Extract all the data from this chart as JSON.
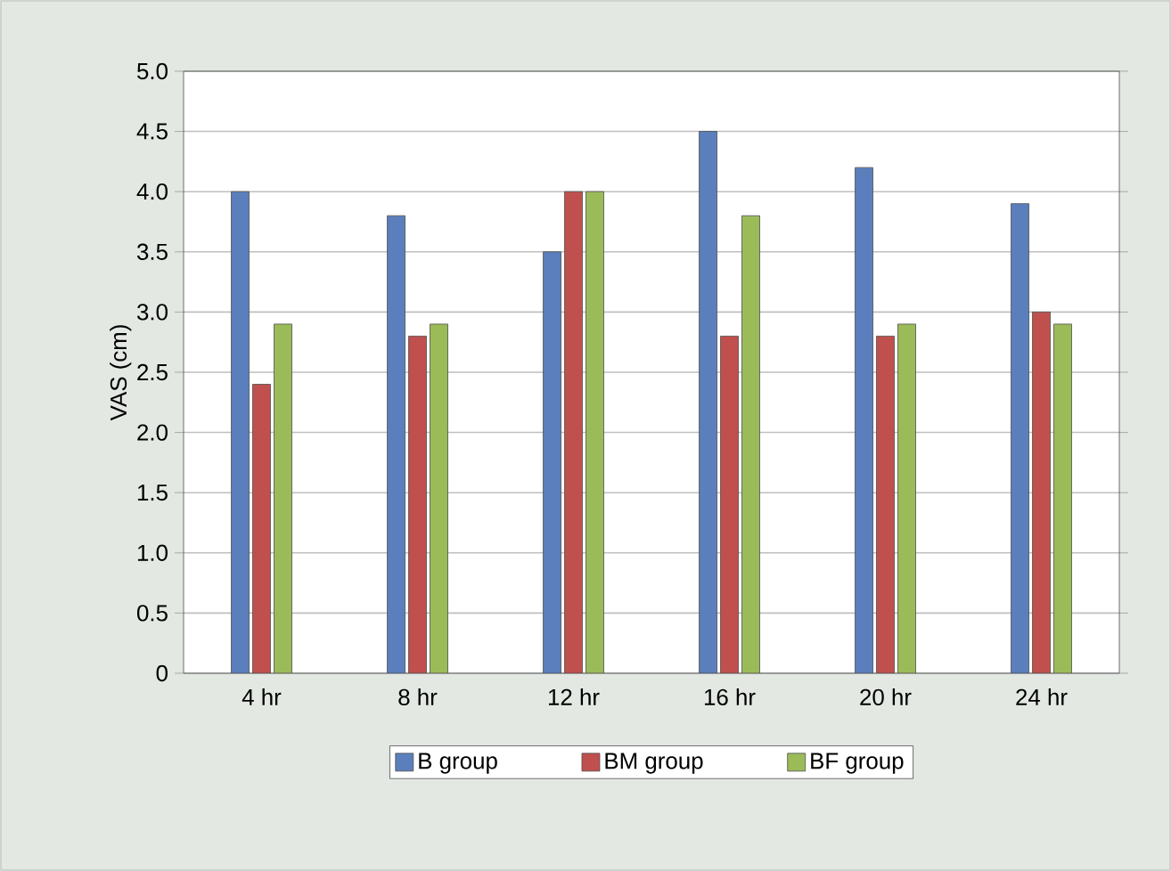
{
  "chart_data": {
    "type": "bar",
    "ylabel": "VAS (cm)",
    "categories": [
      "4 hr",
      "8 hr",
      "12 hr",
      "16 hr",
      "20 hr",
      "24 hr"
    ],
    "series": [
      {
        "name": "B group",
        "color": "#5b7fbd",
        "values": [
          4.0,
          3.8,
          3.5,
          4.5,
          4.2,
          3.9
        ]
      },
      {
        "name": "BM group",
        "color": "#c0504d",
        "values": [
          2.4,
          2.8,
          4.0,
          2.8,
          2.8,
          3.0
        ]
      },
      {
        "name": "BF group",
        "color": "#9bbb59",
        "values": [
          2.9,
          2.9,
          4.0,
          3.8,
          2.9,
          2.9
        ]
      }
    ],
    "ylim": [
      0,
      5
    ],
    "yticks": [
      0,
      0.5,
      {
        "value": 1,
        "label": "1.0"
      },
      1.5,
      {
        "value": 2,
        "label": "2.0"
      },
      2.5,
      {
        "value": 3,
        "label": "3.0"
      },
      3.5,
      {
        "value": 4,
        "label": "4.0"
      },
      4.5,
      {
        "value": 5,
        "label": "5.0"
      }
    ],
    "grid": "y",
    "legend": "bottom"
  }
}
